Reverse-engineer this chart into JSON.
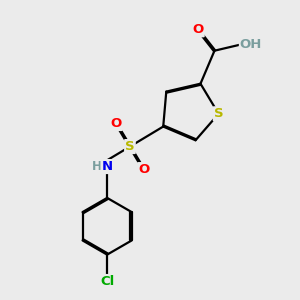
{
  "background_color": "#ebebeb",
  "bond_color": "#000000",
  "bond_width": 1.6,
  "atom_colors": {
    "S": "#b8b800",
    "O": "#ff0000",
    "N": "#0000ee",
    "Cl": "#00aa00",
    "H": "#7a9e9e"
  },
  "font_size": 9.5,
  "figsize": [
    3.0,
    3.0
  ],
  "dpi": 100
}
